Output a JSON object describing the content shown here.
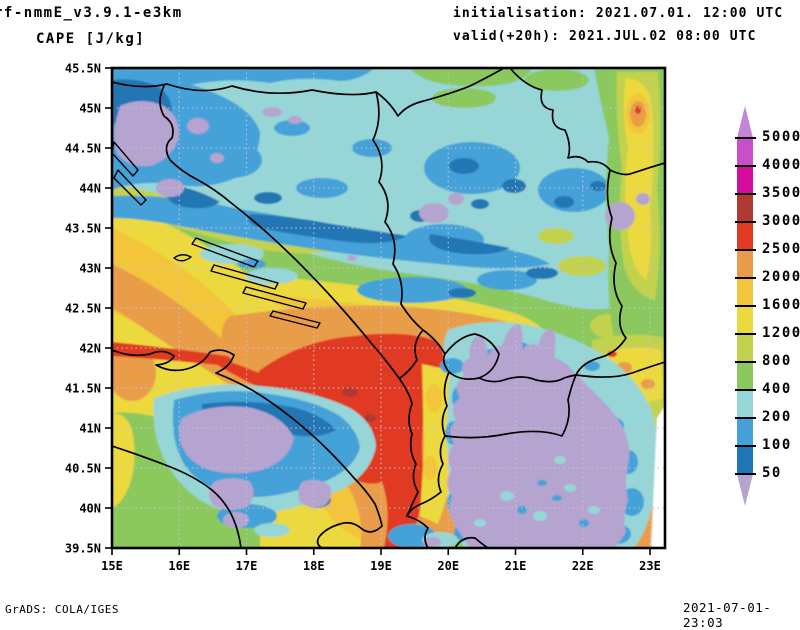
{
  "header": {
    "model_title": "rf-nmmE_v3.9.1-e3km",
    "variable_title": "CAPE [J/kg]",
    "init_label": "initialisation: 2021.07.01. 12:00 UTC",
    "valid_label": "valid(+20h): 2021.JUL.02 08:00 UTC"
  },
  "footer": {
    "credit": "GrADS: COLA/IGES",
    "creation_timestamp": "2021-07-01-23:03"
  },
  "chart_data": {
    "type": "heatmap",
    "title": "CAPE [J/kg]",
    "model": "rf-nmmE_v3.9.1-e3km",
    "initialisation": "2021.07.01. 12:00 UTC",
    "valid": "2021.JUL.02 08:00 UTC",
    "lead": "+20h",
    "unit": "J/kg",
    "region": "Adriatic / Balkans (15E-23E, 39.5N-45.5N)",
    "x_axis": {
      "kind": "longitude",
      "ticks": [
        "15E",
        "16E",
        "17E",
        "18E",
        "19E",
        "20E",
        "21E",
        "22E",
        "23E"
      ],
      "range_deg": [
        15,
        23.2
      ],
      "grid": "dotted"
    },
    "y_axis": {
      "kind": "latitude",
      "ticks": [
        "45.5N",
        "45N",
        "44.5N",
        "44N",
        "43.5N",
        "43N",
        "42.5N",
        "42N",
        "41.5N",
        "41N",
        "40.5N",
        "40N",
        "39.5N"
      ],
      "range_deg": [
        39.5,
        45.5
      ],
      "grid": "dotted"
    },
    "colorbar": {
      "position": "right",
      "levels_ascending": [
        50,
        100,
        200,
        400,
        800,
        1200,
        1600,
        2000,
        2500,
        3000,
        3500,
        4000,
        5000
      ],
      "band_colors_low_to_high": [
        "#b5a3d0",
        "#2076b4",
        "#44a2d8",
        "#96d6d6",
        "#8bc95f",
        "#c2d24d",
        "#ecd93d",
        "#f3c53a",
        "#e99d4a",
        "#e03b22",
        "#b03931",
        "#d30c9c",
        "#c94ec9",
        "#c585d6"
      ],
      "open_ended_arrows": true
    },
    "notable_features": [
      "CAPE maximum 2500-3000+ J/kg over the southern Adriatic Sea (~41-42N, 17.5-19.5E) with small >3000 J/kg cores",
      "2000-2500 J/kg orange band along the Adriatic and Italian coast up to 15E, with a thin 2500+ streak near 42N",
      "Red 2500-3000 J/kg strip hugging the Albanian coast (~19.4E) from 40N to 42.3N",
      "Very low CAPE (<50 J/kg, lavender) over North Macedonia / Kosovo / SW Bulgaria (20-23E, 39.5-41.5N) fringed by 100-400 J/kg blues",
      "Low CAPE (<50-200 J/kg) patches over Istria/Kvarner (15-16E, 44.4-45.2N) and the central Apennines",
      "100-400 J/kg teal over the northern (Pannonian/Serbian) half, 400-1600 J/kg greens over Bosnia",
      "Local 1600-3000 J/kg warm spots near the eastern edge (22.5-23E, 42N and 45N)",
      "Small no-data white wedge at the far SE map edge"
    ]
  }
}
